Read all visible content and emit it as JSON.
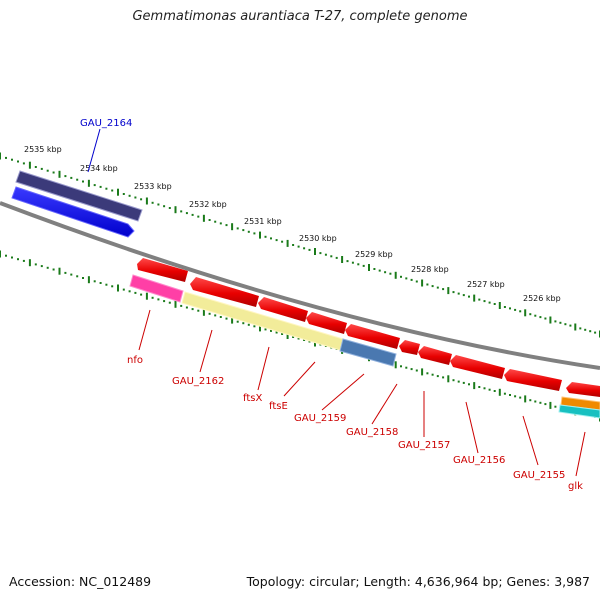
{
  "title": "Gemmatimonas aurantiaca T-27, complete genome",
  "footer": {
    "accession": "Accession: NC_012489",
    "summary": "Topology: circular; Length: 4,636,964 bp; Genes: 3,987"
  },
  "colors": {
    "backbone": "#808080",
    "tick": "#1a7a1a",
    "gene_label_forward": "#0000cc",
    "gene_label_reverse": "#cc0000"
  },
  "scale_labels": [
    "2535 kbp",
    "2534 kbp",
    "2533 kbp",
    "2532 kbp",
    "2531 kbp",
    "2530 kbp",
    "2529 kbp",
    "2528 kbp",
    "2527 kbp",
    "2526 kbp"
  ],
  "gene_labels": [
    "GAU_2164",
    "nfo",
    "GAU_2162",
    "ftsX",
    "ftsE",
    "GAU_2159",
    "GAU_2158",
    "GAU_2157",
    "GAU_2156",
    "GAU_2155",
    "glk"
  ]
}
